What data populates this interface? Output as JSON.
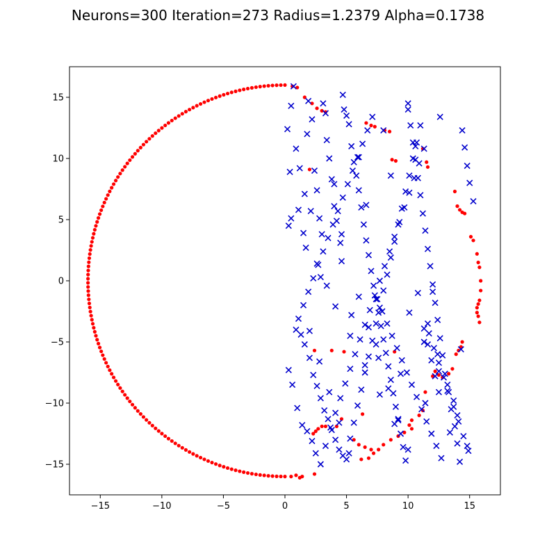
{
  "chart_data": {
    "type": "scatter",
    "title": "Neurons=300 Iteration=273 Radius=1.2379 Alpha=0.1738",
    "xlabel": "",
    "ylabel": "",
    "xlim": [
      -17.5,
      17.5
    ],
    "ylim": [
      -17.5,
      17.5
    ],
    "xticks": [
      -15,
      -10,
      -5,
      0,
      5,
      10,
      15
    ],
    "yticks": [
      -15,
      -10,
      -5,
      0,
      5,
      10,
      15
    ],
    "grid": false,
    "colors": {
      "neurons": "#ff0000",
      "cities": "#0000cc"
    },
    "neurons_arc": {
      "cx": 0,
      "cy": 0,
      "r": 16,
      "start_deg": 90,
      "end_deg": 270,
      "count": 150
    },
    "series": [
      {
        "marker": "dot",
        "x": [
          0.6,
          1.0,
          1.6,
          2.2,
          2.6,
          3.0,
          3.3,
          6.6,
          7.0,
          7.3,
          8.1,
          8.5,
          11.2,
          11.5,
          11.6,
          13.8,
          14.0,
          14.2,
          14.4,
          14.6,
          15.1,
          15.3,
          15.6,
          15.7,
          15.8,
          15.9,
          15.9,
          15.8,
          15.7,
          15.6,
          15.6,
          15.7,
          15.8,
          14.4,
          14.3,
          14.1,
          13.9,
          13.6,
          13.3,
          12.8,
          12.5,
          12.2,
          12.0,
          11.4,
          11.2,
          10.9,
          10.3,
          10.1,
          10.3,
          9.7,
          9.2,
          8.6,
          8.0,
          7.6,
          7.2,
          6.8,
          6.2,
          6.5,
          7.0,
          2.7,
          2.5,
          2.3,
          3.0,
          3.3,
          8.7,
          9.0,
          8.9,
          2.4,
          3.8,
          4.8,
          6.3,
          6.0,
          5.6,
          4.6,
          4.2,
          1.4,
          2.4,
          1.2,
          0.9,
          0.5,
          2.0
        ],
        "y": [
          15.9,
          15.8,
          15.0,
          14.5,
          14.1,
          13.9,
          13.8,
          12.9,
          12.7,
          12.6,
          12.3,
          12.2,
          10.8,
          9.7,
          9.3,
          7.3,
          6.1,
          5.8,
          5.6,
          5.5,
          3.6,
          3.3,
          2.2,
          1.5,
          1.1,
          0.0,
          -0.8,
          -1.6,
          -1.9,
          -2.2,
          -2.6,
          -2.9,
          -3.4,
          -5.0,
          -5.4,
          -5.7,
          -6.0,
          -7.2,
          -7.6,
          -7.9,
          -7.7,
          -7.4,
          -7.8,
          -9.1,
          -10.6,
          -11.0,
          -11.4,
          -11.8,
          -12.1,
          -12.4,
          -12.7,
          -13.0,
          -13.4,
          -13.8,
          -14.1,
          -14.5,
          -14.6,
          -13.6,
          -13.8,
          -12.1,
          -12.3,
          -12.5,
          -11.9,
          -11.9,
          9.9,
          9.8,
          -5.8,
          -5.7,
          -5.7,
          -5.8,
          -10.9,
          -13.4,
          -13.0,
          -11.3,
          -11.9,
          -16.0,
          -15.8,
          -16.1,
          -15.9,
          -16.0,
          9.1
        ]
      },
      {
        "marker": "x",
        "x": [
          0.2,
          0.7,
          0.5,
          0.4,
          0.3,
          0.9,
          1.2,
          1.1,
          1.5,
          1.6,
          1.8,
          1.9,
          2.2,
          2.4,
          2.6,
          2.8,
          3.0,
          3.1,
          3.3,
          3.4,
          3.6,
          3.8,
          4.0,
          4.2,
          4.5,
          4.6,
          4.7,
          4.8,
          5.0,
          5.2,
          5.4,
          5.6,
          5.8,
          6.0,
          6.2,
          6.4,
          6.6,
          6.8,
          7.0,
          7.2,
          7.4,
          7.6,
          7.8,
          8.0,
          8.2,
          8.4,
          8.6,
          8.8,
          9.0,
          9.2,
          9.4,
          9.6,
          9.8,
          10.0,
          10.2,
          10.4,
          10.6,
          10.8,
          11.0,
          11.2,
          11.4,
          11.6,
          11.8,
          12.0,
          12.2,
          12.4,
          12.6,
          12.8,
          13.0,
          13.2,
          13.5,
          13.8,
          14.0,
          14.2,
          14.4,
          14.6,
          14.8,
          15.0,
          15.3,
          0.9,
          1.3,
          1.6,
          2.0,
          2.3,
          2.6,
          2.9,
          3.2,
          3.5,
          3.8,
          4.1,
          4.4,
          4.7,
          5.0,
          5.3,
          5.6,
          5.9,
          6.2,
          6.5,
          6.8,
          7.1,
          7.4,
          7.7,
          8.0,
          8.3,
          8.6,
          8.9,
          9.2,
          9.5,
          9.8,
          10.1,
          10.4,
          10.7,
          11.0,
          11.3,
          11.6,
          11.9,
          12.2,
          12.5,
          0.3,
          0.6,
          1.0,
          1.4,
          1.8,
          2.2,
          2.5,
          2.9,
          3.3,
          3.7,
          4.1,
          4.5,
          4.9,
          5.3,
          5.7,
          6.1,
          6.5,
          6.9,
          7.3,
          7.7,
          8.1,
          8.5,
          8.9,
          9.3,
          9.7,
          10.1,
          10.5,
          10.9,
          11.3,
          11.7,
          12.1,
          12.5,
          12.9,
          13.3,
          13.7,
          14.1,
          14.5,
          14.9,
          1.1,
          1.5,
          1.9,
          2.3,
          2.7,
          3.1,
          3.5,
          3.9,
          4.3,
          4.7,
          5.1,
          5.5,
          5.9,
          6.3,
          6.7,
          7.1,
          7.5,
          7.9,
          8.3,
          8.7,
          9.1,
          9.5,
          9.9,
          10.3,
          10.7,
          11.1,
          11.5,
          11.9,
          12.3,
          12.7,
          2.0,
          2.8,
          3.6,
          4.4,
          5.2,
          6.0,
          6.8,
          7.6,
          8.4,
          9.2,
          10.0,
          10.8,
          11.6,
          12.4,
          13.2,
          14.0,
          14.8,
          0.5,
          1.7,
          2.9,
          4.1,
          5.3,
          6.5,
          7.7,
          8.9,
          10.1,
          11.3,
          12.5,
          13.7,
          2.6,
          4.6,
          6.6,
          8.6,
          10.6,
          12.6,
          3.4,
          5.4,
          7.4,
          9.4,
          11.4,
          13.4,
          2.1,
          4.0,
          6.0,
          8.0,
          10.0,
          12.0,
          14.3
        ],
        "y": [
          12.4,
          15.9,
          14.3,
          8.9,
          4.5,
          10.8,
          9.2,
          5.8,
          3.9,
          7.1,
          12.0,
          14.7,
          13.2,
          9.0,
          7.4,
          5.1,
          3.8,
          14.5,
          13.7,
          11.5,
          10.0,
          8.3,
          6.1,
          4.9,
          3.1,
          1.6,
          15.2,
          14.0,
          13.5,
          12.8,
          11.0,
          9.7,
          8.6,
          7.4,
          6.0,
          4.6,
          3.3,
          2.1,
          0.8,
          -0.4,
          -1.5,
          -2.6,
          -3.7,
          -4.8,
          -5.9,
          -7.0,
          -8.1,
          -9.2,
          -10.3,
          -11.4,
          -12.5,
          -13.6,
          -14.7,
          14.0,
          12.7,
          11.3,
          9.9,
          8.4,
          7.0,
          5.5,
          4.1,
          2.6,
          1.2,
          -0.3,
          -1.8,
          -3.2,
          -4.7,
          -6.1,
          -7.6,
          -9.0,
          -10.5,
          -11.9,
          -13.3,
          -14.8,
          12.3,
          10.9,
          9.4,
          8.0,
          6.5,
          -4.0,
          -4.4,
          -5.2,
          -6.3,
          -7.7,
          -8.6,
          -9.6,
          -10.6,
          -11.3,
          -12.2,
          -13.0,
          -13.8,
          -14.3,
          -14.6,
          -12.9,
          -11.6,
          -10.2,
          -8.9,
          -7.5,
          -6.2,
          -4.9,
          -3.5,
          -2.2,
          -0.8,
          0.5,
          1.9,
          3.2,
          4.6,
          5.9,
          7.3,
          8.6,
          10.0,
          11.3,
          12.7,
          -3.9,
          -5.2,
          -6.5,
          -7.8,
          -9.1,
          -7.3,
          -8.5,
          -10.4,
          -11.8,
          -12.3,
          -13.1,
          -14.1,
          -15.0,
          -13.5,
          -12.0,
          -10.8,
          -9.6,
          -8.4,
          -7.2,
          -6.0,
          -4.8,
          -3.6,
          -2.4,
          -1.2,
          0.0,
          1.2,
          2.4,
          3.6,
          4.8,
          6.0,
          7.2,
          8.4,
          9.6,
          10.8,
          -4.3,
          -5.5,
          -6.7,
          -7.9,
          -9.1,
          -10.3,
          -11.5,
          -12.7,
          -13.9,
          -3.1,
          -2.0,
          -0.9,
          0.2,
          1.3,
          2.4,
          3.5,
          4.6,
          5.7,
          6.8,
          7.9,
          9.0,
          10.1,
          11.2,
          12.3,
          13.4,
          -1.5,
          -2.5,
          -3.5,
          -4.5,
          -5.5,
          -6.5,
          -7.5,
          -8.5,
          -9.5,
          -10.5,
          -11.5,
          -12.5,
          -13.5,
          -14.5,
          -4.1,
          -6.6,
          -9.1,
          -11.6,
          -14.1,
          -1.3,
          -3.8,
          -6.3,
          -8.8,
          -11.3,
          -13.8,
          -1.0,
          -3.5,
          -6.0,
          -8.5,
          -11.0,
          -13.5,
          5.1,
          2.7,
          0.3,
          -2.1,
          -4.5,
          -6.9,
          -9.3,
          -11.7,
          -2.6,
          -5.0,
          -7.4,
          -9.8,
          1.4,
          3.8,
          6.2,
          8.6,
          11.0,
          13.4,
          -0.4,
          -2.8,
          -5.2,
          -7.6,
          -10.0,
          -12.4,
          5.7,
          7.9,
          10.1,
          12.3,
          14.5,
          -0.9,
          -5.6
        ]
      }
    ]
  }
}
